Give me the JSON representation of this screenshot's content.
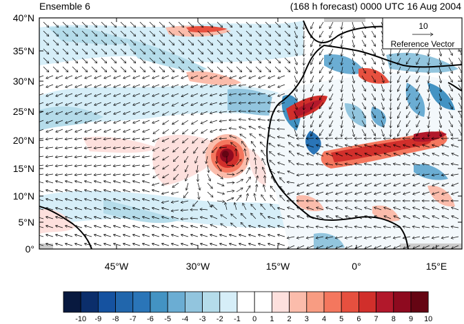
{
  "header": {
    "ensemble_label": "Ensemble 6",
    "forecast_label": "(168 h forecast) 0000 UTC 16 Aug 2004"
  },
  "map": {
    "lat_ticks": [
      "40°N",
      "35°N",
      "30°N",
      "25°N",
      "20°N",
      "15°N",
      "10°N",
      "5°N",
      "0°"
    ],
    "lon_ticks": [
      "45°W",
      "30°W",
      "15°W",
      "0°",
      "15°E"
    ],
    "lat_range": [
      0,
      40
    ],
    "lon_range": [
      -58,
      20
    ]
  },
  "reference_vector": {
    "value": "10",
    "label": "Reference Vector"
  },
  "colorbar": {
    "labels": [
      "-10",
      "-9",
      "-8",
      "-7",
      "-6",
      "-5",
      "-4",
      "-3",
      "-2",
      "-1",
      "0",
      "1",
      "2",
      "3",
      "4",
      "5",
      "6",
      "7",
      "8",
      "9",
      "10"
    ],
    "colors": [
      "#08193f",
      "#0b2e6b",
      "#1552a0",
      "#2166ac",
      "#2a75b8",
      "#4393c3",
      "#6badd3",
      "#92c5de",
      "#b5dcea",
      "#d6eef8",
      "#ffffff",
      "#ffffff",
      "#fde0dd",
      "#fbbcab",
      "#f89c82",
      "#f4775e",
      "#e6503f",
      "#d12f2b",
      "#b2182b",
      "#8e0a1f",
      "#650513"
    ]
  }
}
